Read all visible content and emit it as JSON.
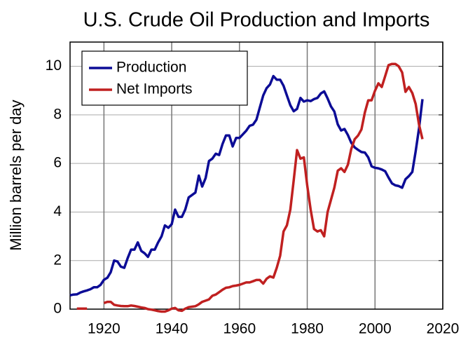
{
  "chart_data": {
    "type": "line",
    "title": "U.S. Crude Oil Production and Imports",
    "y_label": "Million barrels per day",
    "x": [
      1910,
      1911,
      1912,
      1913,
      1914,
      1915,
      1916,
      1917,
      1918,
      1919,
      1920,
      1921,
      1922,
      1923,
      1924,
      1925,
      1926,
      1927,
      1928,
      1929,
      1930,
      1931,
      1932,
      1933,
      1934,
      1935,
      1936,
      1937,
      1938,
      1939,
      1940,
      1941,
      1942,
      1943,
      1944,
      1945,
      1946,
      1947,
      1948,
      1949,
      1950,
      1951,
      1952,
      1953,
      1954,
      1955,
      1956,
      1957,
      1958,
      1959,
      1960,
      1961,
      1962,
      1963,
      1964,
      1965,
      1966,
      1967,
      1968,
      1969,
      1970,
      1971,
      1972,
      1973,
      1974,
      1975,
      1976,
      1977,
      1978,
      1979,
      1980,
      1981,
      1982,
      1983,
      1984,
      1985,
      1986,
      1987,
      1988,
      1989,
      1990,
      1991,
      1992,
      1993,
      1994,
      1995,
      1996,
      1997,
      1998,
      1999,
      2000,
      2001,
      2002,
      2003,
      2004,
      2005,
      2006,
      2007,
      2008,
      2009,
      2010,
      2011,
      2012,
      2013,
      2014
    ],
    "series": [
      {
        "name": "Production",
        "color": "#0c0c96",
        "values": [
          0.57,
          0.6,
          0.61,
          0.68,
          0.73,
          0.77,
          0.82,
          0.9,
          0.9,
          1.0,
          1.21,
          1.29,
          1.52,
          2.0,
          1.96,
          1.75,
          1.7,
          2.1,
          2.45,
          2.45,
          2.75,
          2.4,
          2.3,
          2.15,
          2.45,
          2.45,
          2.75,
          3.0,
          3.45,
          3.35,
          3.5,
          4.1,
          3.8,
          3.8,
          4.1,
          4.6,
          4.7,
          4.8,
          5.5,
          5.05,
          5.4,
          6.1,
          6.2,
          6.4,
          6.35,
          6.8,
          7.15,
          7.15,
          6.7,
          7.05,
          7.05,
          7.2,
          7.35,
          7.55,
          7.6,
          7.8,
          8.3,
          8.8,
          9.1,
          9.25,
          9.6,
          9.45,
          9.45,
          9.2,
          8.8,
          8.4,
          8.15,
          8.25,
          8.7,
          8.55,
          8.6,
          8.57,
          8.65,
          8.7,
          8.88,
          8.97,
          8.68,
          8.35,
          8.14,
          7.61,
          7.36,
          7.42,
          7.17,
          6.85,
          6.66,
          6.56,
          6.47,
          6.45,
          6.25,
          5.88,
          5.82,
          5.8,
          5.75,
          5.68,
          5.42,
          5.18,
          5.1,
          5.07,
          5.0,
          5.35,
          5.48,
          5.65,
          6.5,
          7.45,
          8.65
        ]
      },
      {
        "name": "Net Imports",
        "color": "#c02020",
        "values": [
          null,
          null,
          0.02,
          0.02,
          0.02,
          0.02,
          null,
          null,
          null,
          null,
          0.25,
          0.3,
          0.3,
          0.18,
          0.15,
          0.13,
          0.12,
          0.12,
          0.15,
          0.13,
          0.1,
          0.07,
          0.05,
          0.0,
          -0.02,
          -0.05,
          -0.08,
          -0.1,
          -0.1,
          -0.05,
          0.02,
          0.05,
          -0.05,
          -0.07,
          0.02,
          0.08,
          0.1,
          0.12,
          0.2,
          0.3,
          0.35,
          0.4,
          0.55,
          0.6,
          0.7,
          0.8,
          0.88,
          0.9,
          0.95,
          0.97,
          1.0,
          1.05,
          1.1,
          1.1,
          1.15,
          1.2,
          1.2,
          1.05,
          1.25,
          1.35,
          1.3,
          1.7,
          2.2,
          3.2,
          3.45,
          4.1,
          5.3,
          6.55,
          6.2,
          6.25,
          5.1,
          4.1,
          3.3,
          3.2,
          3.25,
          3.0,
          4.0,
          4.5,
          5.0,
          5.7,
          5.8,
          5.65,
          5.95,
          6.6,
          7.0,
          7.15,
          7.4,
          8.1,
          8.6,
          8.6,
          9.0,
          9.3,
          9.15,
          9.6,
          10.05,
          10.1,
          10.1,
          10.0,
          9.75,
          8.95,
          9.15,
          8.9,
          8.45,
          7.6,
          7.0
        ]
      }
    ],
    "xlim": [
      1910,
      2020
    ],
    "xticks": [
      1920,
      1940,
      1960,
      1980,
      2000,
      2020
    ],
    "ylim": [
      0,
      11
    ],
    "yticks": [
      0,
      2,
      4,
      6,
      8,
      10
    ],
    "grid": true,
    "legend": "upper left"
  }
}
